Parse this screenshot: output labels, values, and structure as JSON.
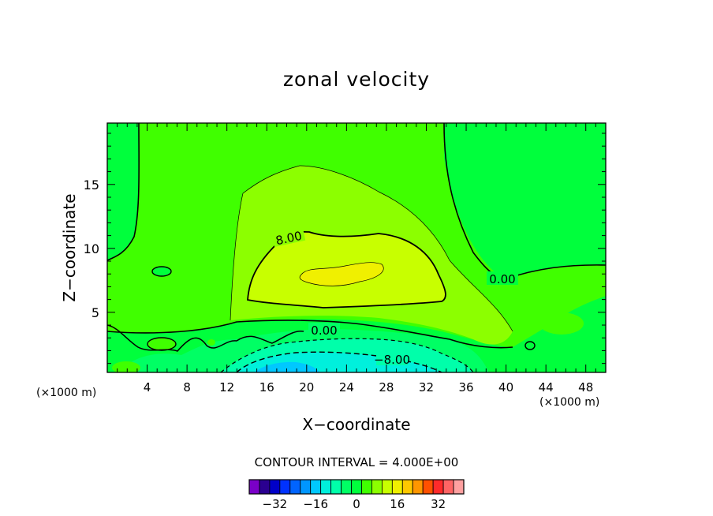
{
  "chart_data": {
    "type": "heatmap",
    "subtype": "filled-contour",
    "title": "zonal velocity",
    "xlabel": "X−coordinate",
    "ylabel": "Z−coordinate",
    "x_unit_label": "(×1000 m)",
    "xlim": [
      0,
      50
    ],
    "ylim": [
      0.3,
      19.8
    ],
    "x_ticks": [
      "4",
      "8",
      "12",
      "16",
      "20",
      "24",
      "28",
      "32",
      "36",
      "40",
      "44",
      "48"
    ],
    "y_ticks": [
      "5",
      "10",
      "15"
    ],
    "contour_interval_text": "CONTOUR INTERVAL = 4.000E+00",
    "contour_labels": [
      "8.00",
      "0.00",
      "0.00",
      "−8.00"
    ],
    "colorbar": {
      "ticks": [
        "−32",
        "−16",
        "0",
        "16",
        "32"
      ],
      "levels": [
        -40,
        -36,
        -32,
        -28,
        -24,
        -20,
        -16,
        -12,
        -8,
        -4,
        0,
        4,
        8,
        12,
        16,
        20,
        24,
        28,
        32,
        36,
        40
      ],
      "colors": [
        "#7a00c8",
        "#2a0090",
        "#0000c8",
        "#0032ff",
        "#0064ff",
        "#0096ff",
        "#00c8ff",
        "#00f0dc",
        "#00ffaa",
        "#00ff64",
        "#00ff3c",
        "#40ff00",
        "#8cff00",
        "#c8ff00",
        "#f0f000",
        "#ffc800",
        "#ff9600",
        "#ff5000",
        "#ff2a2a",
        "#ff6464",
        "#ffa0a0"
      ]
    },
    "colors": {
      "background_field": "#00ff3c",
      "weak_positive": "#40ff00",
      "moderate_positive": "#8cff00",
      "strong_positive": "#c8ff00",
      "peak_positive": "#f0f000",
      "weak_negative": "#00ff64",
      "negative": "#00ffaa",
      "strong_negative": "#00f0dc",
      "min_negative": "#00c8ff"
    }
  }
}
